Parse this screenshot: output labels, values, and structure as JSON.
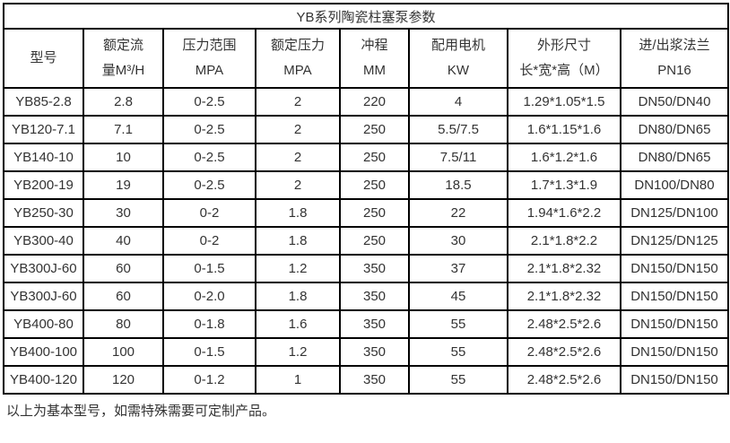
{
  "title": "YB系列陶瓷柱塞泵参数",
  "colors": {
    "border": "#000000",
    "text": "#333333",
    "background": "#ffffff"
  },
  "table": {
    "columns": [
      {
        "line1": "型号",
        "line2": ""
      },
      {
        "line1": "额定流",
        "line2": "量M³/H"
      },
      {
        "line1": "压力范围",
        "line2": "MPA"
      },
      {
        "line1": "额定压力",
        "line2": "MPA"
      },
      {
        "line1": "冲程",
        "line2": "MM"
      },
      {
        "line1": "配用电机",
        "line2": "KW"
      },
      {
        "line1": "外形尺寸",
        "line2": "长*宽*高（M）"
      },
      {
        "line1": "进/出浆法兰",
        "line2": "PN16"
      }
    ],
    "rows": [
      {
        "cells": [
          "YB85-2.8",
          "2.8",
          "0-2.5",
          "2",
          "220",
          "4",
          "1.29*1.05*1.5",
          "DN50/DN40"
        ]
      },
      {
        "cells": [
          "YB120-7.1",
          "7.1",
          "0-2.5",
          "2",
          "250",
          "5.5/7.5",
          "1.6*1.15*1.6",
          "DN80/DN65"
        ]
      },
      {
        "cells": [
          "YB140-10",
          "10",
          "0-2.5",
          "2",
          "250",
          "7.5/11",
          "1.6*1.2*1.6",
          "DN80/DN65"
        ]
      },
      {
        "cells": [
          "YB200-19",
          "19",
          "0-2.5",
          "2",
          "250",
          "18.5",
          "1.7*1.3*1.9",
          "DN100/DN80"
        ]
      },
      {
        "cells": [
          "YB250-30",
          "30",
          "0-2",
          "1.8",
          "250",
          "22",
          "1.94*1.6*2.2",
          "DN125/DN100"
        ]
      },
      {
        "cells": [
          "YB300-40",
          "40",
          "0-2",
          "1.8",
          "250",
          "30",
          "2.1*1.8*2.2",
          "DN125/DN125"
        ]
      },
      {
        "cells": [
          "YB300J-60",
          "60",
          "0-1.5",
          "1.2",
          "350",
          "37",
          "2.1*1.8*2.32",
          "DN150/DN150"
        ]
      },
      {
        "cells": [
          "YB300J-60",
          "60",
          "0-2.0",
          "1.8",
          "350",
          "45",
          "2.1*1.8*2.32",
          "DN150/DN150"
        ]
      },
      {
        "cells": [
          "YB400-80",
          "80",
          "0-1.8",
          "1.6",
          "350",
          "55",
          "2.48*2.5*2.6",
          "DN150/DN150"
        ]
      },
      {
        "cells": [
          "YB400-100",
          "100",
          "0-1.5",
          "1.2",
          "350",
          "55",
          "2.48*2.5*2.6",
          "DN150/DN150"
        ]
      },
      {
        "cells": [
          "YB400-120",
          "120",
          "0-1.2",
          "1",
          "350",
          "55",
          "2.48*2.5*2.6",
          "DN150/DN150"
        ]
      }
    ]
  },
  "footer": {
    "note": "以上为基本型号，如需特殊需要可定制产品。"
  }
}
